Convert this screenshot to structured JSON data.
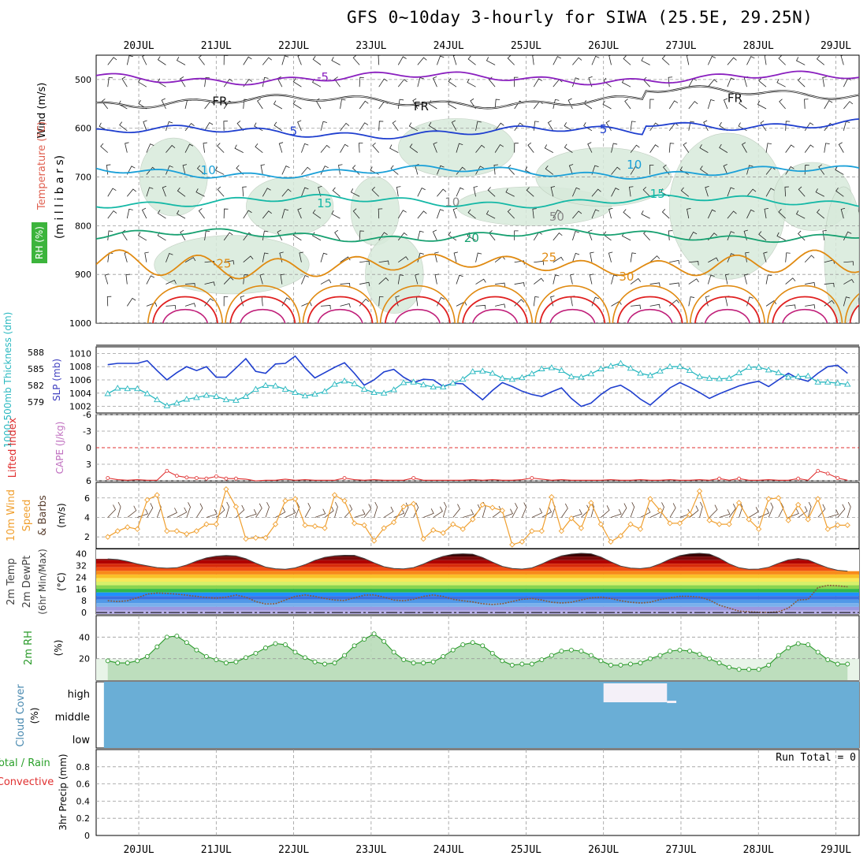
{
  "title": "GFS 0~10day 3-hourly for SIWA (25.5E, 29.25N)",
  "colors": {
    "grid": "#9a9a9a",
    "temp_cool": "#1f3fcf",
    "temp_purple": "#8a1fbf",
    "temp_cyan": "#1aa0d8",
    "temp_teal": "#14b8a6",
    "temp_green": "#16a070",
    "temp_orange": "#e08a10",
    "temp_red": "#e02020",
    "rh_fill": "#d8eadb",
    "slp": "#1f3fcf",
    "thickness": "#2ab8c0",
    "lifted": "#e03030",
    "wind": "#f0a030",
    "dewpt": "#8a5a3a",
    "rh2m": "#2a9a2a",
    "cloud": "#6aaed6"
  },
  "chart_data": {
    "type": "meteogram",
    "days": [
      "20JUL",
      "21JUL",
      "22JUL",
      "23JUL",
      "24JUL",
      "25JUL",
      "26JUL",
      "27JUL",
      "28JUL",
      "29JUL"
    ],
    "t_start": -0.55,
    "t_end": 9.3,
    "panels": {
      "upper_air": {
        "ylabel_parts": [
          "Wind (m/s)",
          "Temperature (°C)",
          "RH (%)",
          "(m i l l i b a r s)"
        ],
        "yticks": [
          "500",
          "600",
          "700",
          "800",
          "900",
          "1000"
        ],
        "ylim": [
          450,
          1000
        ],
        "contours": [
          {
            "label": "-5",
            "level": 497,
            "color": "purple"
          },
          {
            "label": "FR",
            "level": 545,
            "color": "black"
          },
          {
            "label": "5",
            "level": 608,
            "color": "cool"
          },
          {
            "label": "10",
            "level": 690,
            "color": "cyan"
          },
          {
            "label": "15",
            "level": 750,
            "color": "teal"
          },
          {
            "label": "20",
            "level": 820,
            "color": "green"
          },
          {
            "label": "25",
            "level": 880,
            "color": "orange"
          },
          {
            "label": "30",
            "level": 930,
            "color": "red"
          }
        ],
        "label_text": [
          "-5",
          "FR",
          "5",
          "10",
          "15",
          "20",
          "25",
          "30",
          "10",
          "50"
        ]
      },
      "slp_thickness": {
        "ylabel_left": "1000-500mb Thickness (dm)",
        "ylabel_right": "SLP (mb)",
        "left_ticks": [
          "588",
          "585",
          "582",
          "579"
        ],
        "right_ticks": [
          "1010",
          "1008",
          "1006",
          "1004",
          "1002"
        ],
        "slp_ylim": [
          1001,
          1011
        ],
        "slp": [
          1008.3,
          1008.5,
          1008.5,
          1008.5,
          1008.9,
          1007.4,
          1006.0,
          1007.1,
          1008.0,
          1007.4,
          1008.0,
          1006.4,
          1006.4,
          1007.8,
          1009.2,
          1007.3,
          1007.0,
          1008.4,
          1008.5,
          1009.6,
          1007.8,
          1006.3,
          1007.1,
          1007.9,
          1008.6,
          1007.0,
          1005.2,
          1006.0,
          1007.2,
          1007.6,
          1006.4,
          1005.6,
          1006.1,
          1006.0,
          1005.0,
          1005.5,
          1005.4,
          1004.2,
          1003.0,
          1004.4,
          1005.6,
          1005.0,
          1004.3,
          1003.8,
          1003.5,
          1004.2,
          1004.8,
          1003.2,
          1002.0,
          1002.5,
          1003.8,
          1004.8,
          1005.2,
          1004.3,
          1003.1,
          1002.2,
          1003.5,
          1004.8,
          1005.6,
          1004.9,
          1004.1,
          1003.2,
          1003.9,
          1004.5,
          1005.1,
          1005.5,
          1005.8,
          1005.0,
          1006.0,
          1007.0,
          1006.2,
          1005.8,
          1007.0,
          1008.0,
          1008.2,
          1007.0
        ],
        "thickness_ylim": [
          577,
          589
        ],
        "thickness": [
          580.5,
          581.5,
          581.4,
          581.4,
          580.5,
          579.4,
          578.3,
          578.8,
          579.5,
          579.8,
          580.2,
          580.0,
          579.4,
          579.3,
          580.0,
          581.3,
          582.0,
          581.9,
          581.3,
          580.7,
          580.1,
          580.4,
          580.9,
          582.2,
          582.8,
          582.3,
          581.3,
          580.7,
          580.6,
          581.2,
          582.5,
          582.6,
          582.1,
          581.7,
          581.7,
          582.4,
          583.1,
          584.5,
          584.6,
          584.2,
          583.3,
          583.1,
          583.4,
          584.1,
          585.0,
          585.2,
          584.7,
          583.6,
          583.5,
          584.1,
          585.0,
          585.5,
          586.0,
          585.1,
          584.2,
          583.8,
          584.6,
          585.4,
          585.4,
          584.7,
          583.6,
          583.3,
          583.2,
          583.3,
          584.3,
          585.3,
          585.3,
          584.8,
          584.3,
          583.5,
          583.6,
          583.7,
          582.6,
          582.6,
          582.4,
          582.2
        ]
      },
      "stability": {
        "ylabel_left": "Lifted Index",
        "ylabel_right": "CAPE (J/kg)",
        "yticks": [
          "-6",
          "-3",
          "0",
          "3",
          "6"
        ],
        "ylim": [
          -6,
          6
        ],
        "lifted_index": [
          5.5,
          5.8,
          5.9,
          5.8,
          5.9,
          5.9,
          4.2,
          5.1,
          5.4,
          5.5,
          5.6,
          5.2,
          5.6,
          5.6,
          5.7,
          6.0,
          5.9,
          5.9,
          5.7,
          5.9,
          5.8,
          5.9,
          5.9,
          5.9,
          5.5,
          5.8,
          5.9,
          5.8,
          5.9,
          5.9,
          5.9,
          5.5,
          5.9,
          5.9,
          5.9,
          5.9,
          5.9,
          5.8,
          5.9,
          5.8,
          5.9,
          5.9,
          5.8,
          5.5,
          5.7,
          5.9,
          5.8,
          5.9,
          5.9,
          5.9,
          5.9,
          5.8,
          5.9,
          5.9,
          5.8,
          5.9,
          5.9,
          5.8,
          5.9,
          5.9,
          5.8,
          5.9,
          5.6,
          5.9,
          5.6,
          5.9,
          5.9,
          5.8,
          5.9,
          5.9,
          5.6,
          5.9,
          4.2,
          4.7,
          5.5,
          5.9
        ]
      },
      "wind10m": {
        "ylabel_parts": [
          "10m Wind",
          "Speed",
          "& Barbs",
          "(m/s)"
        ],
        "yticks": [
          "2",
          "4",
          "6"
        ],
        "ylim": [
          0.8,
          7.6
        ],
        "speed": [
          2.0,
          2.6,
          3.0,
          2.8,
          5.8,
          6.3,
          2.6,
          2.6,
          2.3,
          2.6,
          3.3,
          3.3,
          6.9,
          5.1,
          1.8,
          1.9,
          1.9,
          3.3,
          5.7,
          5.9,
          3.2,
          3.1,
          2.9,
          6.3,
          5.7,
          3.4,
          3.2,
          1.6,
          2.9,
          3.5,
          5.1,
          5.4,
          1.8,
          2.7,
          2.4,
          3.3,
          2.8,
          3.8,
          5.3,
          5.0,
          4.7,
          1.2,
          1.5,
          2.6,
          2.6,
          6.1,
          2.6,
          3.9,
          2.9,
          5.5,
          3.3,
          1.5,
          2.1,
          3.3,
          2.8,
          5.9,
          4.7,
          3.4,
          3.4,
          4.3,
          6.7,
          3.7,
          3.3,
          3.3,
          5.5,
          3.8,
          2.8,
          5.9,
          6.0,
          3.7,
          5.3,
          3.8,
          5.9,
          2.8,
          3.2,
          3.2
        ]
      },
      "temperature2m": {
        "ylabel_parts": [
          "2m Temp",
          "2m DewPt",
          "(6hr Min/Max)",
          "(°C)"
        ],
        "yticks": [
          "40",
          "32",
          "24",
          "16",
          "8",
          "0"
        ],
        "ylim": [
          -1,
          43
        ],
        "temp": [
          36.5,
          36.1,
          34.8,
          33.1,
          31.8,
          30.6,
          30.2,
          30.5,
          32.4,
          35.0,
          37.2,
          38.4,
          38.8,
          38.5,
          36.6,
          33.6,
          30.9,
          29.8,
          29.5,
          30.4,
          32.6,
          35.5,
          37.6,
          38.6,
          39.0,
          38.9,
          36.8,
          33.8,
          31.2,
          30.0,
          29.7,
          30.6,
          33.0,
          36.0,
          38.3,
          39.6,
          40.0,
          39.7,
          37.5,
          34.3,
          31.4,
          30.0,
          29.6,
          30.4,
          33.0,
          36.2,
          38.6,
          39.8,
          40.3,
          40.0,
          37.8,
          34.5,
          31.6,
          30.3,
          29.9,
          30.7,
          33.2,
          36.3,
          38.7,
          39.9,
          40.3,
          39.8,
          37.0,
          33.2,
          30.5,
          29.5,
          29.6,
          30.8,
          33.5,
          35.8,
          36.8,
          35.8,
          33.0,
          30.5,
          28.8,
          28.2
        ],
        "dewpt": [
          8.0,
          7.5,
          8.0,
          10.0,
          12.5,
          13.3,
          13.0,
          12.5,
          11.8,
          11.0,
          10.2,
          9.8,
          10.5,
          12.0,
          10.5,
          7.5,
          5.8,
          6.0,
          8.5,
          11.0,
          12.0,
          11.0,
          9.5,
          8.5,
          8.2,
          10.0,
          11.8,
          12.0,
          10.5,
          8.5,
          8.0,
          9.0,
          11.0,
          12.0,
          11.0,
          9.0,
          8.0,
          7.2,
          6.0,
          5.5,
          6.0,
          7.5,
          9.0,
          9.5,
          8.5,
          7.0,
          6.5,
          7.0,
          8.5,
          10.0,
          10.5,
          9.5,
          8.0,
          7.0,
          6.5,
          7.0,
          8.8,
          10.0,
          11.0,
          11.0,
          10.5,
          8.5,
          5.0,
          3.0,
          1.0,
          0.5,
          0.2,
          0.0,
          0.5,
          3.0,
          8.5,
          9.0,
          17.0,
          18.5,
          18.2,
          17.5
        ],
        "band_colors": [
          "#000000",
          "#3a0000",
          "#7a0a0a",
          "#b00000",
          "#d82a0a",
          "#f05014",
          "#f88a1a",
          "#fac028",
          "#f8e85a",
          "#d8f06a",
          "#8ad450",
          "#32b84a",
          "#1e90ff",
          "#3a70e0",
          "#5098e8",
          "#7ab0ec",
          "#9a98e0",
          "#b8b0e8"
        ]
      },
      "rh2m": {
        "ylabel": "2m RH",
        "unit": "(%)",
        "yticks": [
          "40",
          "20"
        ],
        "ylim": [
          0,
          60
        ],
        "rh": [
          18,
          16,
          16,
          18,
          22,
          31,
          40,
          41,
          35,
          28,
          22,
          19,
          16,
          17,
          21,
          25,
          30,
          34,
          33,
          26,
          21,
          17,
          15,
          16,
          23,
          32,
          38,
          43,
          36,
          26,
          19,
          16,
          16,
          17,
          22,
          28,
          33,
          35,
          32,
          25,
          18,
          14,
          15,
          15,
          19,
          23,
          27,
          28,
          27,
          23,
          18,
          14,
          14,
          15,
          16,
          20,
          23,
          27,
          28,
          27,
          24,
          20,
          16,
          12,
          10,
          10,
          10,
          14,
          23,
          30,
          34,
          33,
          26,
          19,
          15,
          15
        ]
      },
      "cloud": {
        "ylabel": "Cloud Cover",
        "unit": "(%)",
        "levels": [
          "high",
          "middle",
          "low"
        ],
        "high_clear_from_day": 6.0,
        "high_clear_to_day": 6.82
      },
      "precip": {
        "ylabel_left": "Total / Rain",
        "ylabel_left2": "Convective",
        "ylabel_right": "3hr Precip (mm)",
        "yticks": [
          "0.8",
          "0.6",
          "0.4",
          "0.2",
          "0"
        ],
        "ylim": [
          0,
          1
        ],
        "run_total": "Run Total = 0",
        "values": []
      }
    }
  }
}
